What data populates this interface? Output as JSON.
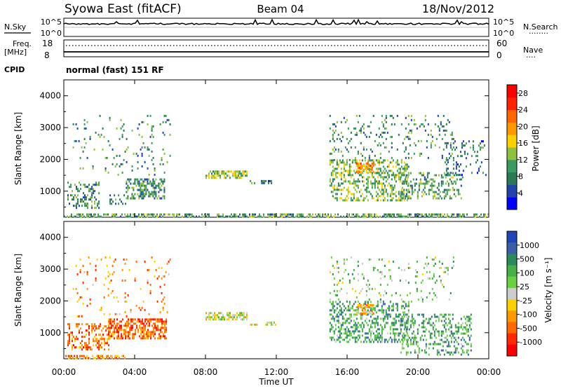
{
  "header": {
    "station": "Syowa East (fitACF)",
    "beam": "Beam 04",
    "date": "18/Nov/2012",
    "cpid_label": "CPID",
    "cpid_value": "normal (fast) 151 RF"
  },
  "top_panels": {
    "nsky_label": "N.Sky",
    "nsearch_label": "N.Search",
    "nsearch_dots": "........",
    "noise_ticks": [
      "10^5",
      "10^0"
    ],
    "freq_label": "Freq.",
    "freq_unit": "[MHz]",
    "freq_ticks": [
      "18",
      "8"
    ],
    "nave_label": "Nave",
    "nave_dots": "....",
    "nave_ticks": [
      "60",
      "0"
    ]
  },
  "colors": {
    "power": [
      "#0000ff",
      "#2244aa",
      "#2a7a55",
      "#3a9a60",
      "#90c040",
      "#ffd000",
      "#ff9900",
      "#ff6600",
      "#ff2200",
      "#ff0000"
    ],
    "velocity": [
      "#2244bb",
      "#3a5fa8",
      "#2a8a5a",
      "#46b046",
      "#6ad040",
      "#cccccc",
      "#ffd000",
      "#ff9900",
      "#ff6a00",
      "#ff2a00",
      "#ff0000"
    ]
  },
  "chart_data": [
    {
      "type": "heatmap",
      "name": "power",
      "xlabel": "Time UT",
      "ylabel": "Slant Range [km]",
      "xticks": [
        "00:00",
        "04:00",
        "08:00",
        "12:00",
        "16:00",
        "20:00",
        "00:00"
      ],
      "xlim": [
        0,
        24
      ],
      "ylim": [
        180,
        4500
      ],
      "yticks": [
        1000,
        2000,
        3000,
        4000
      ],
      "colorbar_label": "Power [dB]",
      "colorbar_ticks": [
        "4",
        "8",
        "12",
        "16",
        "20",
        "24",
        "28"
      ],
      "colorbar_range": [
        0,
        30
      ],
      "scatter_regions": [
        {
          "t0": 0.0,
          "t1": 24.0,
          "r0": 200,
          "r1": 300,
          "density": 0.55,
          "level": 0.35
        },
        {
          "t0": 0.2,
          "t1": 2.0,
          "r0": 450,
          "r1": 1300,
          "density": 0.3,
          "level": 0.3
        },
        {
          "t0": 3.5,
          "t1": 5.7,
          "r0": 800,
          "r1": 1400,
          "density": 0.5,
          "level": 0.3
        },
        {
          "t0": 2.5,
          "t1": 3.5,
          "r0": 600,
          "r1": 900,
          "density": 0.3,
          "level": 0.3
        },
        {
          "t0": 8.0,
          "t1": 10.3,
          "r0": 1450,
          "r1": 1650,
          "density": 0.6,
          "level": 0.45
        },
        {
          "t0": 10.5,
          "t1": 12.0,
          "r0": 1250,
          "r1": 1350,
          "density": 0.4,
          "level": 0.25
        },
        {
          "t0": 15.0,
          "t1": 19.5,
          "r0": 700,
          "r1": 2000,
          "density": 0.4,
          "level": 0.4
        },
        {
          "t0": 16.5,
          "t1": 17.5,
          "r0": 1600,
          "r1": 1900,
          "density": 0.6,
          "level": 0.65
        },
        {
          "t0": 19.0,
          "t1": 22.5,
          "r0": 800,
          "r1": 1600,
          "density": 0.3,
          "level": 0.35
        },
        {
          "t0": 15.0,
          "t1": 22.0,
          "r0": 2000,
          "r1": 3400,
          "density": 0.1,
          "level": 0.3
        },
        {
          "t0": 0.5,
          "t1": 6.0,
          "r0": 1500,
          "r1": 3400,
          "density": 0.06,
          "level": 0.3
        },
        {
          "t0": 21.5,
          "t1": 23.8,
          "r0": 1500,
          "r1": 2600,
          "density": 0.15,
          "level": 0.25
        }
      ]
    },
    {
      "type": "heatmap",
      "name": "velocity",
      "xlabel": "Time UT",
      "ylabel": "Slant Range [km]",
      "xticks": [
        "00:00",
        "04:00",
        "08:00",
        "12:00",
        "16:00",
        "20:00",
        "00:00"
      ],
      "xlim": [
        0,
        24
      ],
      "ylim": [
        180,
        4500
      ],
      "yticks": [
        1000,
        2000,
        3000,
        4000
      ],
      "colorbar_label": "Velocity [m s⁻¹]",
      "colorbar_ticks": [
        "1000",
        "500",
        "100",
        "25",
        "-25",
        "-100",
        "-500",
        "-1000"
      ],
      "scatter_regions": [
        {
          "t0": 0.0,
          "t1": 3.5,
          "r0": 200,
          "r1": 300,
          "density": 0.55,
          "level": 0.7
        },
        {
          "t0": 0.2,
          "t1": 2.5,
          "r0": 500,
          "r1": 1300,
          "density": 0.35,
          "level": 0.75
        },
        {
          "t0": 2.5,
          "t1": 5.8,
          "r0": 800,
          "r1": 1450,
          "density": 0.6,
          "level": 0.78
        },
        {
          "t0": 8.0,
          "t1": 10.3,
          "r0": 1450,
          "r1": 1650,
          "density": 0.6,
          "level": 0.5
        },
        {
          "t0": 10.5,
          "t1": 12.0,
          "r0": 1250,
          "r1": 1350,
          "density": 0.4,
          "level": 0.5
        },
        {
          "t0": 15.0,
          "t1": 19.5,
          "r0": 700,
          "r1": 2000,
          "density": 0.4,
          "level": 0.3
        },
        {
          "t0": 16.5,
          "t1": 17.5,
          "r0": 1600,
          "r1": 1900,
          "density": 0.6,
          "level": 0.62
        },
        {
          "t0": 19.0,
          "t1": 23.0,
          "r0": 300,
          "r1": 1600,
          "density": 0.3,
          "level": 0.3
        },
        {
          "t0": 15.0,
          "t1": 22.0,
          "r0": 2000,
          "r1": 3400,
          "density": 0.1,
          "level": 0.4
        },
        {
          "t0": 0.5,
          "t1": 6.0,
          "r0": 1500,
          "r1": 3400,
          "density": 0.06,
          "level": 0.7
        }
      ]
    }
  ]
}
